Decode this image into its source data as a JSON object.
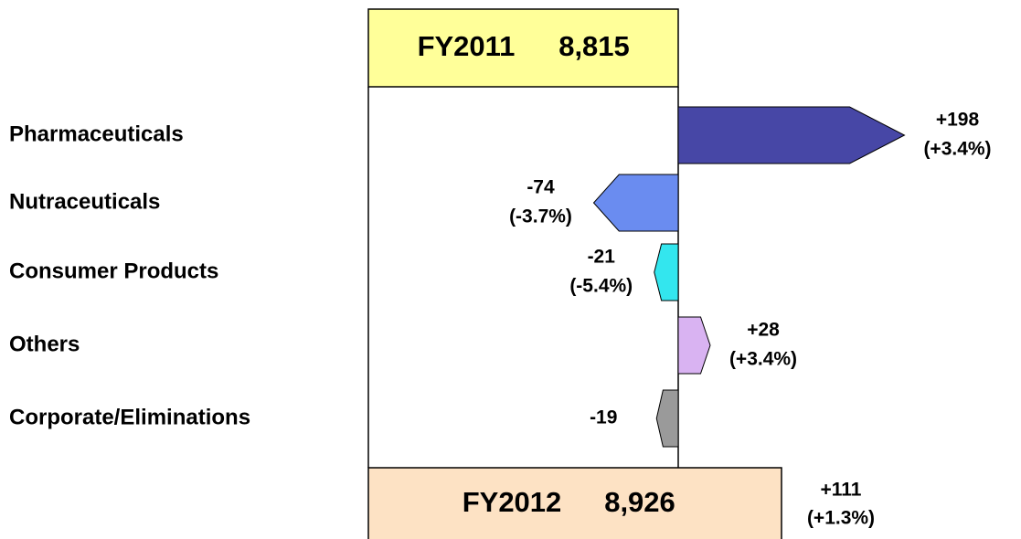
{
  "chart_data": {
    "type": "waterfall",
    "start": {
      "label": "FY2011",
      "value_label": "8,815"
    },
    "end": {
      "label": "FY2012",
      "value_label": "8,926",
      "change_label": "+111",
      "pct_label": "(+1.3%)"
    },
    "categories": [
      "Pharmaceuticals",
      "Nutraceuticals",
      "Consumer Products",
      "Others",
      "Corporate/Eliminations"
    ],
    "values": [
      198,
      -74,
      -21,
      28,
      -19
    ],
    "value_labels": [
      "+198",
      "-74",
      "-21",
      "+28",
      "-19"
    ],
    "pct_labels": [
      "(+3.4%)",
      "(-3.7%)",
      "(-5.4%)",
      "(+3.4%)",
      null
    ],
    "colors": [
      "#4747a6",
      "#6a8cf0",
      "#33e6ee",
      "#d9b3f2",
      "#9a9a9a"
    ]
  }
}
